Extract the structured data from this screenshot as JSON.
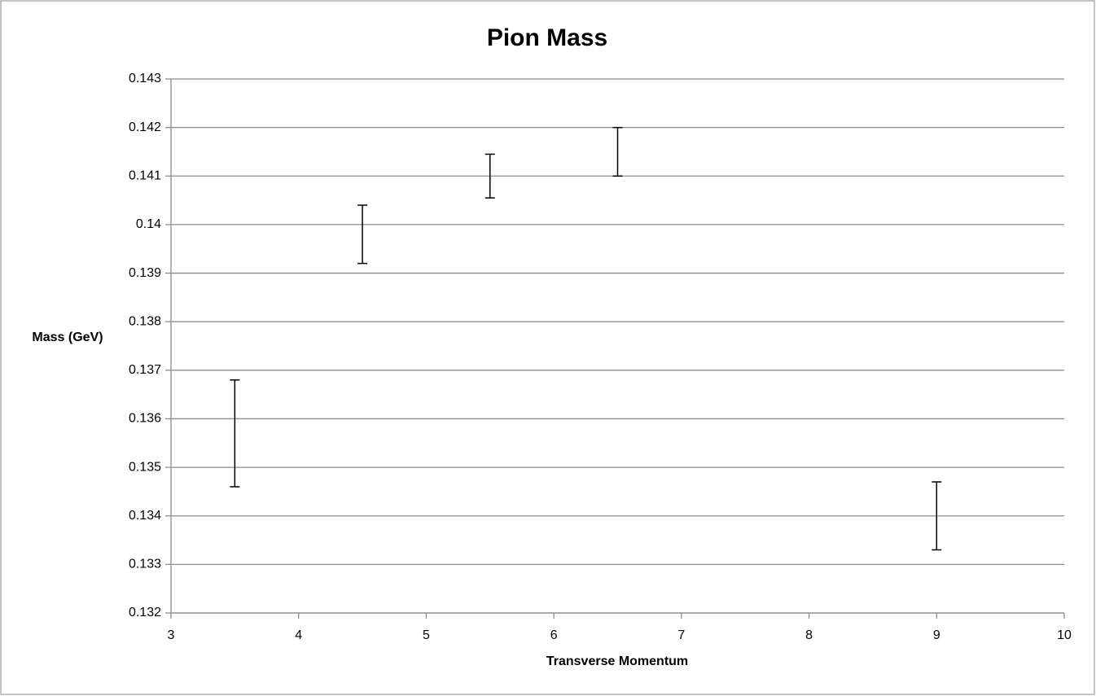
{
  "chart_data": {
    "type": "errorbar",
    "title": "Pion Mass",
    "x_label": "Transverse Momentum",
    "y_label": "Mass (GeV)",
    "series": [
      {
        "x": [
          3.5,
          4.5,
          5.5,
          6.5,
          9
        ],
        "values": [
          0.1357,
          0.1398,
          0.141,
          0.1415,
          0.134
        ],
        "errors": [
          0.0011,
          0.0006,
          0.00045,
          0.0005,
          0.0007
        ],
        "color": "#000000"
      }
    ],
    "xlim": [
      3,
      10
    ],
    "xticks": [
      3,
      4,
      5,
      6,
      7,
      8,
      9,
      10
    ],
    "ylim": [
      0.132,
      0.143
    ],
    "yticks": [
      0.132,
      0.133,
      0.134,
      0.135,
      0.136,
      0.137,
      0.138,
      0.139,
      0.14,
      0.141,
      0.142,
      0.143
    ],
    "grid": true
  }
}
